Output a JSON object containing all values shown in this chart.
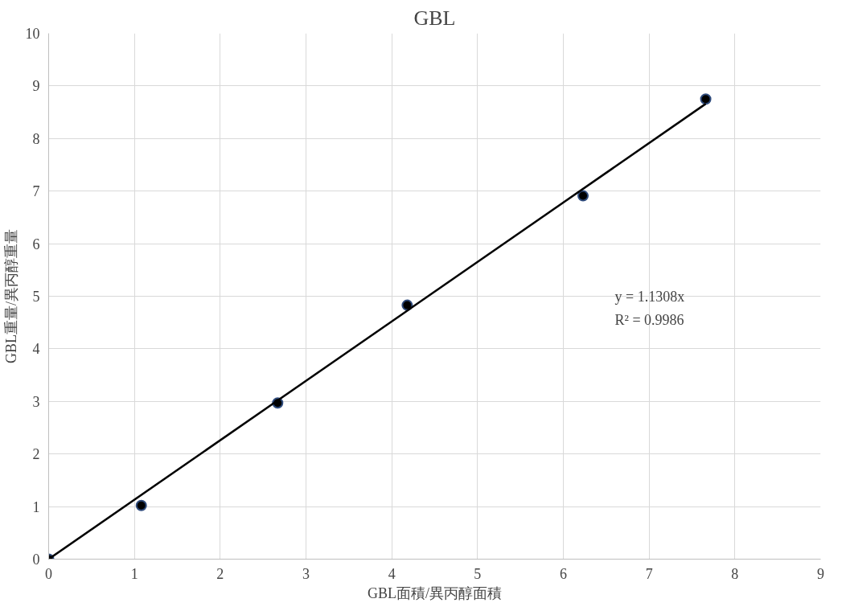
{
  "chart_data": {
    "type": "scatter",
    "title": "GBL",
    "xlabel": "GBL面積/異丙醇面積",
    "ylabel": "GBL重量/異丙醇重量",
    "xlim": [
      0,
      9
    ],
    "ylim": [
      0,
      10
    ],
    "xticks": [
      0,
      1,
      2,
      3,
      4,
      5,
      6,
      7,
      8,
      9
    ],
    "yticks": [
      0,
      1,
      2,
      3,
      4,
      5,
      6,
      7,
      8,
      9,
      10
    ],
    "grid": true,
    "series": [
      {
        "marker": "circle",
        "color": "#000000",
        "x": [
          0,
          1.08,
          2.67,
          4.18,
          6.23,
          7.66
        ],
        "values": [
          0,
          1.02,
          2.97,
          4.83,
          6.91,
          8.75
        ]
      },
      {
        "type": "line",
        "marker": "none",
        "color": "#000000",
        "x": [
          0,
          7.66
        ],
        "values": [
          0,
          8.66
        ]
      }
    ],
    "annotations": [
      "y = 1.1308x",
      "R² = 0.9986"
    ]
  }
}
